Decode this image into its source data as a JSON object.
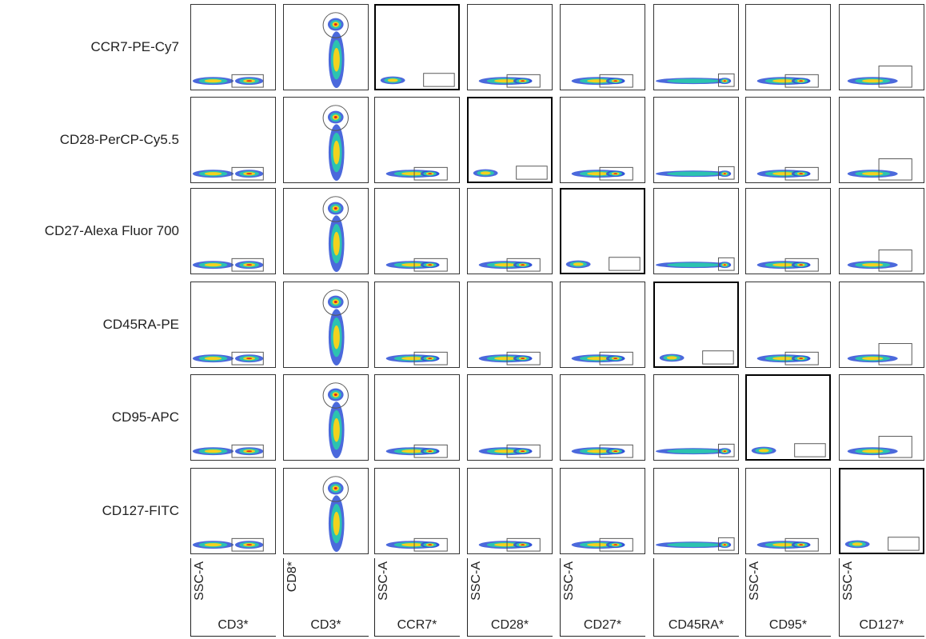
{
  "rows": [
    {
      "label": "CCR7-PE-Cy7"
    },
    {
      "label": "CD28-PerCP-Cy5.5"
    },
    {
      "label": "CD27-Alexa Fluor 700"
    },
    {
      "label": "CD45RA-PE"
    },
    {
      "label": "CD95-APC"
    },
    {
      "label": "CD127-FITC"
    }
  ],
  "columns": [
    {
      "x_label": "CD3*",
      "y_label": "SSC-A"
    },
    {
      "x_label": "CD3*",
      "y_label": "CD8*"
    },
    {
      "x_label": "CCR7*",
      "y_label": "SSC-A"
    },
    {
      "x_label": "CD28*",
      "y_label": "SSC-A"
    },
    {
      "x_label": "CD27*",
      "y_label": "SSC-A"
    },
    {
      "x_label": "CD45RA*",
      "y_label": ""
    },
    {
      "x_label": "CD95*",
      "y_label": "SSC-A"
    },
    {
      "x_label": "CD127*",
      "y_label": "SSC-A"
    }
  ],
  "colors": {
    "density_low": "#2b4fd6",
    "density_mid": "#2cc3b0",
    "density_high": "#f3d21e",
    "density_peak": "#e2261b",
    "panel_border": "#333333",
    "diagonal_border": "#000000"
  }
}
